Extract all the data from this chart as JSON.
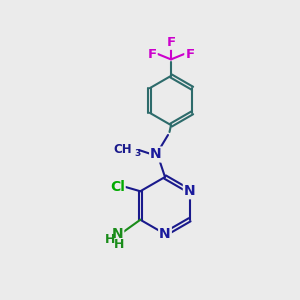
{
  "background_color": "#ebebeb",
  "bond_color_ring": "#2d6b6b",
  "bond_color_pyrim": "#1a1a8c",
  "bond_width": 1.5,
  "atom_colors": {
    "N": "#1a1a9c",
    "Cl": "#00aa00",
    "F": "#cc00cc",
    "C": "#1a1a8c",
    "H": "#1a8c1a"
  },
  "font_size_atoms": 10,
  "font_size_small": 8.5
}
